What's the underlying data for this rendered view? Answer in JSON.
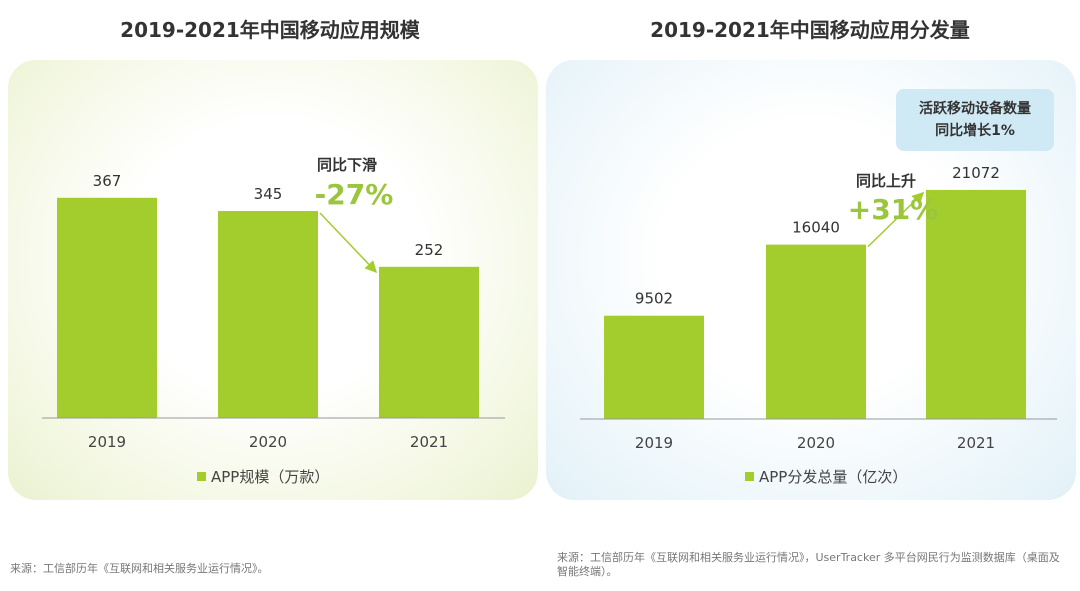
{
  "charts": {
    "left": {
      "title": "2019-2021年中国移动应用规模",
      "legend_label": "APP规模（万款）",
      "change_label": "同比下滑",
      "change_value": "-27%",
      "source": "来源：工信部历年《互联网和相关服务业运行情况》。"
    },
    "right": {
      "title": "2019-2021年中国移动应用分发量",
      "legend_label": "APP分发总量（亿次）",
      "change_label": "同比上升",
      "change_value": "+31%",
      "callout_line1": "活跃移动设备数量",
      "callout_line2": "同比增长1%",
      "source": "来源：工信部历年《互联网和相关服务业运行情况》，UserTracker 多平台网民行为监测数据库（桌面及智能终端）。"
    }
  },
  "colors": {
    "bar": "#a2cd2c",
    "change_value": "#9bc53d",
    "arrow": "#a2cd2c",
    "axis": "#999999"
  },
  "chart_data": [
    {
      "type": "bar",
      "title": "2019-2021年中国移动应用规模",
      "categories": [
        "2019",
        "2020",
        "2021"
      ],
      "series": [
        {
          "name": "APP规模（万款）",
          "values": [
            367,
            345,
            252
          ]
        }
      ],
      "ylim": [
        0,
        560
      ],
      "grid": false,
      "legend": "bottom"
    },
    {
      "type": "bar",
      "title": "2019-2021年中国移动应用分发量",
      "categories": [
        "2019",
        "2020",
        "2021"
      ],
      "series": [
        {
          "name": "APP分发总量（亿次）",
          "values": [
            9502,
            16040,
            21072
          ]
        }
      ],
      "ylim": [
        0,
        31000
      ],
      "grid": false,
      "legend": "bottom"
    }
  ]
}
